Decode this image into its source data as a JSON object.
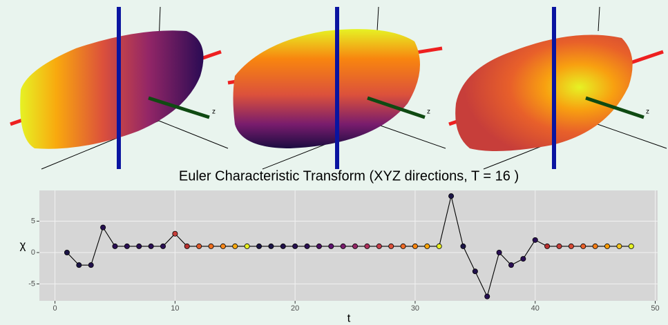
{
  "render_axis_labels": [
    "z",
    "z",
    "z"
  ],
  "chart_data": {
    "type": "line",
    "title": "Euler Characteristic Transform (XYZ directions, T = 16 )",
    "x_label": "t",
    "y_label": "χ",
    "x": [
      1,
      2,
      3,
      4,
      5,
      6,
      7,
      8,
      9,
      10,
      11,
      12,
      13,
      14,
      15,
      16,
      17,
      18,
      19,
      20,
      21,
      22,
      23,
      24,
      25,
      26,
      27,
      28,
      29,
      30,
      31,
      32,
      33,
      34,
      35,
      36,
      37,
      38,
      39,
      40,
      41,
      42,
      43,
      44,
      45,
      46,
      47,
      48
    ],
    "values": [
      0,
      -2,
      -2,
      4,
      1,
      1,
      1,
      1,
      1,
      3,
      1,
      1,
      1,
      1,
      1,
      1,
      1,
      1,
      1,
      1,
      1,
      1,
      1,
      1,
      1,
      1,
      1,
      1,
      1,
      1,
      1,
      1,
      9,
      1,
      -3,
      -7,
      0,
      -2,
      -1,
      2,
      1,
      1,
      1,
      1,
      1,
      1,
      1,
      1
    ],
    "colors": [
      "#1b1446",
      "#1b1446",
      "#20104a",
      "#261050",
      "#2a0f54",
      "#2a0f54",
      "#2a0f54",
      "#2a0f54",
      "#2a0f54",
      "#c73e3a",
      "#b8302f",
      "#e0582a",
      "#ef6e1e",
      "#f5861a",
      "#f9a80e",
      "#e8ef22",
      "#1b1446",
      "#1b1446",
      "#20104a",
      "#261050",
      "#2a0f54",
      "#4a0f62",
      "#5d126e",
      "#781c6d",
      "#932667",
      "#ae305c",
      "#c73e4c",
      "#dc513b",
      "#ed6925",
      "#f8850f",
      "#fca50a",
      "#e8ef22",
      "#1b1446",
      "#1b1446",
      "#20104a",
      "#261050",
      "#2a0f54",
      "#2a0f54",
      "#2a0f54",
      "#2a0f54",
      "#b8302f",
      "#c73e3a",
      "#d84a35",
      "#e8602a",
      "#f57d15",
      "#fb9b06",
      "#f6c51d",
      "#e6f224"
    ],
    "line_color": "#000000",
    "xlim": [
      -1.3,
      50.2
    ],
    "ylim": [
      -7.7,
      9.9
    ],
    "xticks": [
      0,
      10,
      20,
      30,
      40,
      50
    ],
    "yticks": [
      -5,
      0,
      5
    ],
    "grid": true
  }
}
